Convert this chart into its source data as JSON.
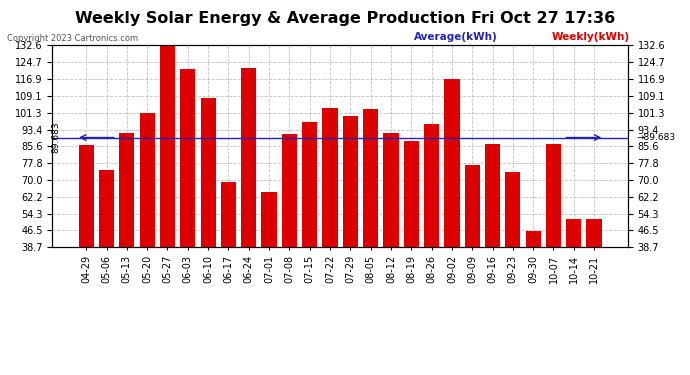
{
  "title": "Weekly Solar Energy & Average Production Fri Oct 27 17:36",
  "copyright": "Copyright 2023 Cartronics.com",
  "legend_avg": "Average(kWh)",
  "legend_weekly": "Weekly(kWh)",
  "average_line": 89.683,
  "categories": [
    "04-29",
    "05-06",
    "05-13",
    "05-20",
    "05-27",
    "06-03",
    "06-10",
    "06-17",
    "06-24",
    "07-01",
    "07-08",
    "07-15",
    "07-22",
    "07-29",
    "08-05",
    "08-12",
    "08-19",
    "08-26",
    "09-02",
    "09-09",
    "09-16",
    "09-23",
    "09-30",
    "10-07",
    "10-14",
    "10-21"
  ],
  "values": [
    86.024,
    74.568,
    91.816,
    101.064,
    132.552,
    121.392,
    107.884,
    68.772,
    121.84,
    64.324,
    91.448,
    96.76,
    103.316,
    99.552,
    102.768,
    91.584,
    88.24,
    95.892,
    116.856,
    76.932,
    86.544,
    73.876,
    46.128,
    86.868,
    51.856,
    51.692
  ],
  "bar_color": "#dd0000",
  "avg_line_color": "#2222bb",
  "title_color": "#000000",
  "copyright_color": "#555555",
  "legend_avg_color": "#2222bb",
  "legend_weekly_color": "#dd0000",
  "ylim_min": 38.7,
  "ylim_max": 132.6,
  "yticks": [
    38.7,
    46.5,
    54.3,
    62.2,
    70.0,
    77.8,
    85.6,
    93.4,
    101.3,
    109.1,
    116.9,
    124.7,
    132.6
  ],
  "background_color": "#ffffff",
  "grid_color": "#bbbbbb",
  "title_fontsize": 11.5,
  "tick_fontsize": 7,
  "bar_label_fontsize": 6,
  "avg_label_text": "89.683"
}
